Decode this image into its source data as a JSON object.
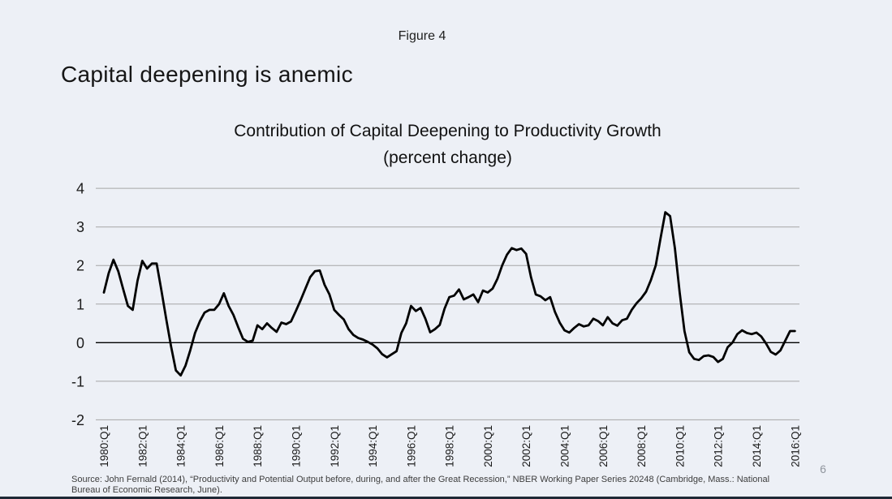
{
  "slide": {
    "figure_label": "Figure 4",
    "heading": "Capital deepening is anemic",
    "page_number": "6",
    "source_line1": "Source:  John Fernald (2014), “Productivity and Potential Output before, during, and after the Great Recession,” NBER Working Paper Series 20248 (Cambridge, Mass.:  National",
    "source_line2": "Bureau of Economic Research, June)."
  },
  "colors": {
    "background": "#edf0f6",
    "gridline": "#a6a6a6",
    "zero_axis": "#000000",
    "line": "#000000",
    "bottom_bar": "#1e2936",
    "page_number_color": "#8f949c"
  },
  "chart_data": {
    "type": "line",
    "title_line1": "Contribution of Capital Deepening to Productivity Growth",
    "title_line2": "(percent change)",
    "frequency": "quarterly",
    "x_start": "1980:Q1",
    "x_end": "2016:Q1",
    "x_tick_labels": [
      "1980:Q1",
      "1982:Q1",
      "1984:Q1",
      "1986:Q1",
      "1988:Q1",
      "1990:Q1",
      "1992:Q1",
      "1994:Q1",
      "1996:Q1",
      "1998:Q1",
      "2000:Q1",
      "2002:Q1",
      "2004:Q1",
      "2006:Q1",
      "2008:Q1",
      "2010:Q1",
      "2012:Q1",
      "2014:Q1",
      "2016:Q1"
    ],
    "x_ticks_every_n_quarters": 8,
    "y_ticks": [
      4,
      3,
      2,
      1,
      0,
      -1,
      -2
    ],
    "ylim": [
      -2,
      4
    ],
    "grid": "horizontal",
    "legend": "none",
    "series": [
      {
        "name": "Contribution of capital deepening (percent change)",
        "values": [
          1.3,
          1.8,
          2.15,
          1.85,
          1.4,
          0.95,
          0.85,
          1.6,
          2.12,
          1.92,
          2.05,
          2.05,
          1.35,
          0.6,
          -0.1,
          -0.72,
          -0.85,
          -0.6,
          -0.2,
          0.25,
          0.55,
          0.78,
          0.85,
          0.85,
          1.0,
          1.28,
          0.95,
          0.72,
          0.4,
          0.1,
          0.02,
          0.05,
          0.45,
          0.35,
          0.5,
          0.38,
          0.28,
          0.52,
          0.48,
          0.55,
          0.82,
          1.1,
          1.4,
          1.7,
          1.85,
          1.87,
          1.5,
          1.25,
          0.85,
          0.72,
          0.6,
          0.35,
          0.2,
          0.12,
          0.08,
          0.02,
          -0.05,
          -0.15,
          -0.3,
          -0.38,
          -0.3,
          -0.22,
          0.25,
          0.5,
          0.95,
          0.82,
          0.9,
          0.62,
          0.27,
          0.35,
          0.46,
          0.88,
          1.18,
          1.22,
          1.38,
          1.12,
          1.18,
          1.25,
          1.05,
          1.35,
          1.3,
          1.4,
          1.65,
          2.0,
          2.28,
          2.45,
          2.4,
          2.44,
          2.3,
          1.7,
          1.25,
          1.2,
          1.1,
          1.18,
          0.8,
          0.52,
          0.32,
          0.26,
          0.38,
          0.48,
          0.42,
          0.45,
          0.62,
          0.56,
          0.45,
          0.66,
          0.5,
          0.44,
          0.58,
          0.62,
          0.85,
          1.02,
          1.15,
          1.32,
          1.62,
          2.0,
          2.7,
          3.38,
          3.28,
          2.45,
          1.3,
          0.3,
          -0.25,
          -0.42,
          -0.45,
          -0.35,
          -0.33,
          -0.37,
          -0.5,
          -0.42,
          -0.12,
          0.0,
          0.22,
          0.32,
          0.25,
          0.22,
          0.26,
          0.16,
          -0.02,
          -0.24,
          -0.31,
          -0.2,
          0.05,
          0.3,
          0.3
        ]
      }
    ]
  }
}
